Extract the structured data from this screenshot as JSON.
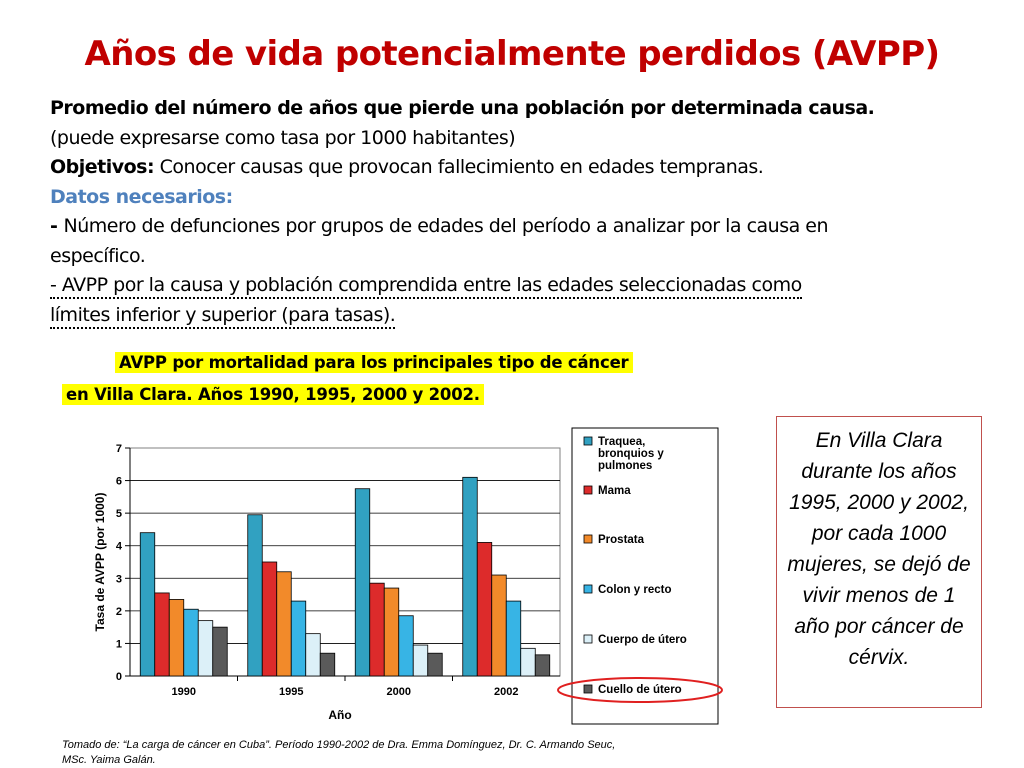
{
  "header": {
    "title": "Años de vida potencialmente perdidos (AVPP)"
  },
  "body": {
    "definition": "Promedio del número de años que pierde una población por determinada causa.",
    "rate_note": "(puede expresarse como tasa por 1000 habitantes)",
    "objectives_label": "Objetivos:",
    "objectives_text": " Conocer causas que provocan fallecimiento en edades tempranas.",
    "data_needed_label": "Datos necesarios:",
    "item1_prefix": "- ",
    "item1_line1": "Número de defunciones por grupos de edades del período a analizar por la causa en",
    "item1_line2": "específico.",
    "item2_line1": "-  AVPP por la causa y población comprendida entre las edades seleccionadas como",
    "item2_line2": "límites inferior y superior (para tasas)."
  },
  "chart_heading": {
    "line1": "AVPP por mortalidad para los principales tipo de cáncer",
    "line2": "en Villa Clara. Años 1990, 1995, 2000 y 2002."
  },
  "chart_data": {
    "type": "bar",
    "categories": [
      "1990",
      "1995",
      "2000",
      "2002"
    ],
    "series": [
      {
        "name": "Traquea, bronquios y pulmones",
        "label_lines": [
          "Traquea,",
          "bronquios y",
          "pulmones"
        ],
        "color": "#31a1c1",
        "values": [
          4.4,
          4.95,
          5.75,
          6.1
        ]
      },
      {
        "name": "Mama",
        "label_lines": [
          "Mama"
        ],
        "color": "#dd2b2b",
        "values": [
          2.55,
          3.5,
          2.85,
          4.1
        ]
      },
      {
        "name": "Prostata",
        "label_lines": [
          "Prostata"
        ],
        "color": "#f28a2a",
        "values": [
          2.35,
          3.2,
          2.7,
          3.1
        ]
      },
      {
        "name": "Colon y recto",
        "label_lines": [
          "Colon y recto"
        ],
        "color": "#37b4e5",
        "values": [
          2.05,
          2.3,
          1.85,
          2.3
        ]
      },
      {
        "name": "Cuerpo de útero",
        "label_lines": [
          "Cuerpo de útero"
        ],
        "color": "#dcf0f8",
        "values": [
          1.7,
          1.3,
          0.95,
          0.85
        ]
      },
      {
        "name": "Cuello de útero",
        "label_lines": [
          "Cuello de útero"
        ],
        "color": "#5a5a5a",
        "values": [
          1.5,
          0.7,
          0.7,
          0.65
        ]
      }
    ],
    "title": "AVPP por mortalidad para los principales tipo de cáncer en Villa Clara. Años 1990, 1995, 2000 y 2002.",
    "xlabel": "Año",
    "ylabel": "Tasa de AVPP (por 1000)",
    "ylim": [
      0,
      7
    ],
    "yticks": [
      "0",
      "1",
      "2",
      "3",
      "4",
      "5",
      "6",
      "7"
    ],
    "highlighted_series": "Cuello de útero",
    "legend_position": "right"
  },
  "note": {
    "text": "En Villa Clara durante los años 1995, 2000 y 2002, por cada 1000 mujeres, se dejó de vivir menos de 1 año por cáncer de cérvix."
  },
  "source": {
    "line1": "Tomado de: “La carga de cáncer en Cuba”. Período 1990-2002 de   Dra. Emma Domínguez, Dr. C. Armando Seuc,",
    "line2": "MSc. Yaima Galán."
  },
  "colors": {
    "title": "#c00000",
    "accent_blue": "#4f81bd",
    "highlight": "#ffff00",
    "circle": "#e02020"
  }
}
